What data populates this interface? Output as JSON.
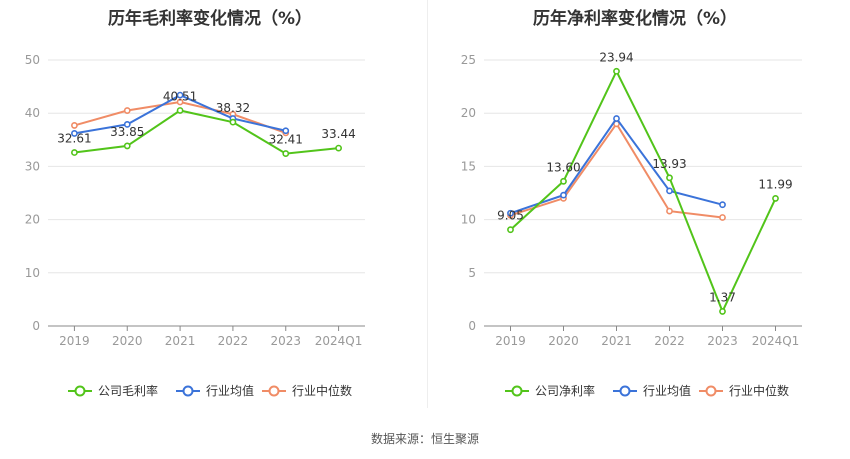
{
  "chart_data": [
    {
      "type": "line",
      "title": "历年毛利率变化情况（%）",
      "categories": [
        "2019",
        "2020",
        "2021",
        "2022",
        "2023",
        "2024Q1"
      ],
      "ylim": [
        0,
        50
      ],
      "yticks": [
        0,
        10,
        20,
        30,
        40,
        50
      ],
      "grid": true,
      "legend_position": "bottom",
      "series": [
        {
          "name": "公司毛利率",
          "color": "#52c41a",
          "values": [
            32.61,
            33.85,
            40.51,
            38.32,
            32.41,
            33.44
          ],
          "labels": [
            "32.61",
            "33.85",
            "40.51",
            "38.32",
            "32.41",
            "33.44"
          ]
        },
        {
          "name": "行业均值",
          "color": "#3b73d9",
          "values": [
            36.2,
            37.9,
            43.4,
            39.0,
            36.7,
            null
          ]
        },
        {
          "name": "行业中位数",
          "color": "#f08c66",
          "values": [
            37.7,
            40.5,
            42.1,
            39.8,
            36.3,
            null
          ]
        }
      ]
    },
    {
      "type": "line",
      "title": "历年净利率变化情况（%）",
      "categories": [
        "2019",
        "2020",
        "2021",
        "2022",
        "2023",
        "2024Q1"
      ],
      "ylim": [
        0,
        25
      ],
      "yticks": [
        0,
        5,
        10,
        15,
        20,
        25
      ],
      "grid": true,
      "legend_position": "bottom",
      "series": [
        {
          "name": "公司净利率",
          "color": "#52c41a",
          "values": [
            9.05,
            13.6,
            23.94,
            13.93,
            1.37,
            11.99
          ],
          "labels": [
            "9.05",
            "13.60",
            "23.94",
            "13.93",
            "1.37",
            "11.99"
          ]
        },
        {
          "name": "行业均值",
          "color": "#3b73d9",
          "values": [
            10.6,
            12.3,
            19.5,
            12.7,
            11.4,
            null
          ]
        },
        {
          "name": "行业中位数",
          "color": "#f08c66",
          "values": [
            10.4,
            12.0,
            19.0,
            10.8,
            10.2,
            null
          ]
        }
      ]
    }
  ],
  "source_text": "数据来源：恒生聚源"
}
